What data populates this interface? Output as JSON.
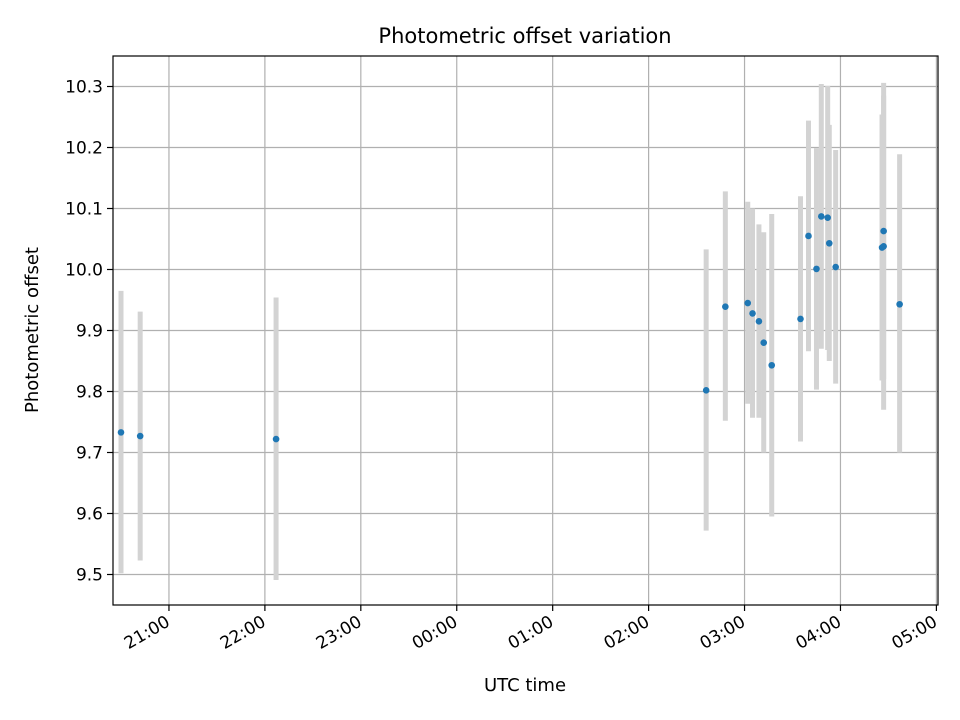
{
  "chart_data": {
    "type": "scatter",
    "title": "Photometric offset variation",
    "xlabel": "UTC time",
    "ylabel": "Photometric offset",
    "x_unit": "UTC time (HH:MM)",
    "x_ticks": [
      "21:00",
      "22:00",
      "23:00",
      "00:00",
      "01:00",
      "02:00",
      "03:00",
      "04:00",
      "05:00"
    ],
    "y_ticks": [
      9.5,
      9.6,
      9.7,
      9.8,
      9.9,
      10.0,
      10.1,
      10.2,
      10.3
    ],
    "xlim": [
      "20:25",
      "05:01"
    ],
    "ylim": [
      9.45,
      10.35
    ],
    "grid": true,
    "marker_color": "#1f77b4",
    "errorbar_color": "#d3d3d3",
    "points": [
      {
        "x": "20:30",
        "y": 9.733,
        "yerr_low": 9.502,
        "yerr_high": 9.965
      },
      {
        "x": "20:42",
        "y": 9.727,
        "yerr_low": 9.523,
        "yerr_high": 9.931
      },
      {
        "x": "22:07",
        "y": 9.722,
        "yerr_low": 9.491,
        "yerr_high": 9.954
      },
      {
        "x": "02:36",
        "y": 9.802,
        "yerr_low": 9.572,
        "yerr_high": 10.033
      },
      {
        "x": "02:48",
        "y": 9.939,
        "yerr_low": 9.752,
        "yerr_high": 10.128
      },
      {
        "x": "03:02",
        "y": 9.945,
        "yerr_low": 9.78,
        "yerr_high": 10.111
      },
      {
        "x": "03:05",
        "y": 9.928,
        "yerr_low": 9.757,
        "yerr_high": 10.1
      },
      {
        "x": "03:09",
        "y": 9.915,
        "yerr_low": 9.757,
        "yerr_high": 10.074
      },
      {
        "x": "03:12",
        "y": 9.88,
        "yerr_low": 9.7,
        "yerr_high": 10.061
      },
      {
        "x": "03:17",
        "y": 9.843,
        "yerr_low": 9.595,
        "yerr_high": 10.091
      },
      {
        "x": "03:35",
        "y": 9.919,
        "yerr_low": 9.718,
        "yerr_high": 10.12
      },
      {
        "x": "03:40",
        "y": 10.055,
        "yerr_low": 9.866,
        "yerr_high": 10.244
      },
      {
        "x": "03:45",
        "y": 10.001,
        "yerr_low": 9.803,
        "yerr_high": 10.199
      },
      {
        "x": "03:48",
        "y": 10.087,
        "yerr_low": 9.87,
        "yerr_high": 10.304
      },
      {
        "x": "03:52",
        "y": 10.085,
        "yerr_low": 9.868,
        "yerr_high": 10.301
      },
      {
        "x": "03:53",
        "y": 10.043,
        "yerr_low": 9.85,
        "yerr_high": 10.237
      },
      {
        "x": "03:57",
        "y": 10.004,
        "yerr_low": 9.813,
        "yerr_high": 10.196
      },
      {
        "x": "04:26",
        "y": 10.036,
        "yerr_low": 9.818,
        "yerr_high": 10.254
      },
      {
        "x": "04:27",
        "y": 10.063,
        "yerr_low": 9.82,
        "yerr_high": 10.285
      },
      {
        "x": "04:27",
        "y": 10.038,
        "yerr_low": 9.77,
        "yerr_high": 10.306
      },
      {
        "x": "04:37",
        "y": 9.943,
        "yerr_low": 9.7,
        "yerr_high": 10.189
      }
    ]
  }
}
